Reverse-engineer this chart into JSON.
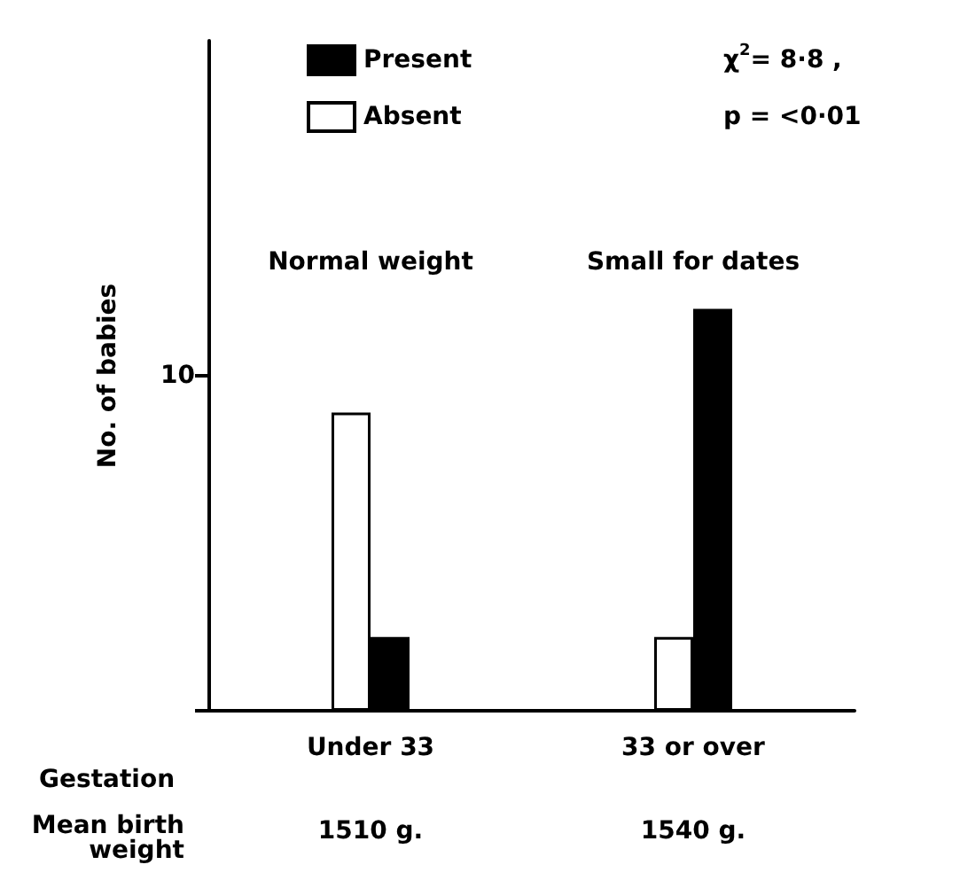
{
  "chart_data": {
    "type": "bar",
    "categories": [
      "Under 33",
      "33 or over"
    ],
    "xlabel": "Gestation",
    "ylabel": "No. of babies",
    "series": [
      {
        "name": "Absent",
        "color": "#ffffff",
        "values": [
          8.9,
          2.2
        ]
      },
      {
        "name": "Present",
        "color": "#000000",
        "values": [
          2.2,
          12
        ]
      }
    ],
    "ylim": [
      0,
      20
    ],
    "yticks": [
      {
        "value": 0,
        "label": null
      },
      10
    ],
    "grid": false,
    "legend": "top left",
    "annotations": [
      "Normal weight",
      "Small for dates",
      "χ$^{2}$= 8·8 ,",
      "p = <0·01",
      "Mean birth weight",
      "1510 g.",
      "1540 g."
    ]
  }
}
